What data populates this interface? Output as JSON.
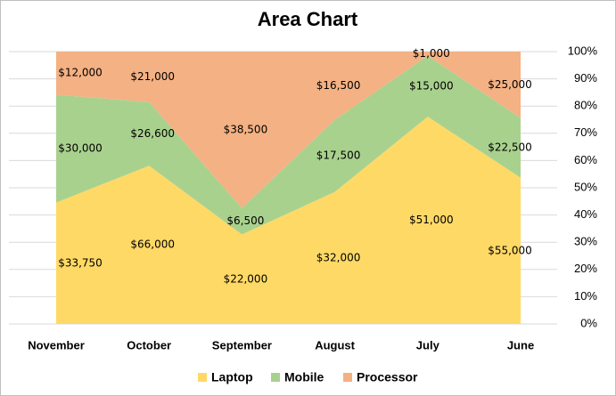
{
  "chart_data": {
    "type": "stacked_area_percent",
    "title": "Area Chart",
    "categories": [
      "November",
      "October",
      "September",
      "August",
      "July",
      "June"
    ],
    "series": [
      {
        "name": "Laptop",
        "color": "#ffd966",
        "values": [
          33750,
          66000,
          22000,
          32000,
          51000,
          55000
        ],
        "value_labels": [
          "$33,750",
          "$66,000",
          "$22,000",
          "$32,000",
          "$51,000",
          "$55,000"
        ]
      },
      {
        "name": "Mobile",
        "color": "#a9d18e",
        "values": [
          30000,
          26600,
          6500,
          17500,
          15000,
          22500
        ],
        "value_labels": [
          "$30,000",
          "$26,600",
          "$6,500",
          "$17,500",
          "$15,000",
          "$22,500"
        ]
      },
      {
        "name": "Processor",
        "color": "#f4b183",
        "values": [
          12000,
          21000,
          38500,
          16500,
          1000,
          25000
        ],
        "value_labels": [
          "$12,000",
          "$21,000",
          "$38,500",
          "$16,500",
          "$1,000",
          "$25,000"
        ]
      }
    ],
    "ylim": [
      0,
      100
    ],
    "yticks": [
      {
        "value": 0,
        "label": "0%"
      },
      {
        "value": 10,
        "label": "10%"
      },
      {
        "value": 20,
        "label": "20%"
      },
      {
        "value": 30,
        "label": "30%"
      },
      {
        "value": 40,
        "label": "40%"
      },
      {
        "value": 50,
        "label": "50%"
      },
      {
        "value": 60,
        "label": "60%"
      },
      {
        "value": 70,
        "label": "70%"
      },
      {
        "value": 80,
        "label": "80%"
      },
      {
        "value": 90,
        "label": "90%"
      },
      {
        "value": 100,
        "label": "100%"
      }
    ],
    "grid": true,
    "legend": "bottom"
  }
}
